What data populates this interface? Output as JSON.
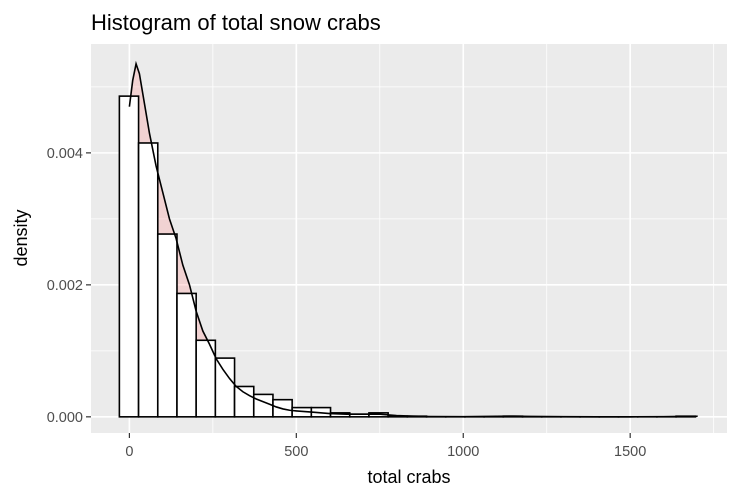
{
  "chart_data": {
    "type": "histogram",
    "title": "Histogram of total snow crabs",
    "xlabel": "total crabs",
    "ylabel": "density",
    "xlim": [
      -115,
      1790
    ],
    "ylim": [
      -0.000245,
      0.00565
    ],
    "x_ticks": [
      0,
      500,
      1000,
      1500
    ],
    "x_tick_labels": [
      "0",
      "500",
      "1000",
      "1500"
    ],
    "y_ticks": [
      0.0,
      0.002,
      0.004
    ],
    "y_tick_labels": [
      "0.000",
      "0.002",
      "0.004"
    ],
    "grid": true,
    "bin_width": 57.5,
    "bins": [
      {
        "x0": -30,
        "x1": 27.5,
        "density": 0.00486
      },
      {
        "x0": 27.5,
        "x1": 85,
        "density": 0.00415
      },
      {
        "x0": 85,
        "x1": 142.5,
        "density": 0.00277
      },
      {
        "x0": 142.5,
        "x1": 200,
        "density": 0.00187
      },
      {
        "x0": 200,
        "x1": 257.5,
        "density": 0.00116
      },
      {
        "x0": 257.5,
        "x1": 315,
        "density": 0.00089
      },
      {
        "x0": 315,
        "x1": 372.5,
        "density": 0.00046
      },
      {
        "x0": 372.5,
        "x1": 430,
        "density": 0.00034
      },
      {
        "x0": 430,
        "x1": 487.5,
        "density": 0.00026
      },
      {
        "x0": 487.5,
        "x1": 545,
        "density": 0.00014
      },
      {
        "x0": 545,
        "x1": 602.5,
        "density": 0.00014
      },
      {
        "x0": 602.5,
        "x1": 660,
        "density": 6e-05
      },
      {
        "x0": 660,
        "x1": 717.5,
        "density": 4e-05
      },
      {
        "x0": 717.5,
        "x1": 775,
        "density": 6e-05
      },
      {
        "x0": 775,
        "x1": 832.5,
        "density": 1e-05
      },
      {
        "x0": 832.5,
        "x1": 890,
        "density": 1e-05
      },
      {
        "x0": 890,
        "x1": 947.5,
        "density": 0.0
      },
      {
        "x0": 947.5,
        "x1": 1005,
        "density": 0.0
      },
      {
        "x0": 1005,
        "x1": 1062.5,
        "density": 0.0
      },
      {
        "x0": 1062.5,
        "x1": 1120,
        "density": 0.0
      },
      {
        "x0": 1120,
        "x1": 1177.5,
        "density": 1e-05
      },
      {
        "x0": 1177.5,
        "x1": 1235,
        "density": 0.0
      },
      {
        "x0": 1235,
        "x1": 1292.5,
        "density": 0.0
      },
      {
        "x0": 1292.5,
        "x1": 1350,
        "density": 0.0
      },
      {
        "x0": 1350,
        "x1": 1407.5,
        "density": 0.0
      },
      {
        "x0": 1407.5,
        "x1": 1465,
        "density": 0.0
      },
      {
        "x0": 1465,
        "x1": 1522.5,
        "density": 0.0
      },
      {
        "x0": 1522.5,
        "x1": 1580,
        "density": 0.0
      },
      {
        "x0": 1580,
        "x1": 1637.5,
        "density": 0.0
      },
      {
        "x0": 1637.5,
        "x1": 1695,
        "density": 1e-05
      }
    ],
    "density_curve": {
      "x": [
        0,
        10,
        20,
        30,
        40,
        50,
        60,
        80,
        100,
        120,
        140,
        160,
        180,
        200,
        220,
        240,
        260,
        280,
        300,
        320,
        340,
        360,
        380,
        400,
        420,
        440,
        460,
        480,
        500,
        550,
        600,
        650,
        700,
        750,
        800,
        850,
        900,
        1000,
        1100,
        1150,
        1200,
        1300,
        1400,
        1500,
        1600,
        1650,
        1700
      ],
      "y": [
        0.0047,
        0.0051,
        0.00535,
        0.0052,
        0.0049,
        0.0046,
        0.0043,
        0.0038,
        0.0034,
        0.003,
        0.0027,
        0.0023,
        0.002,
        0.0016,
        0.0013,
        0.0011,
        0.00088,
        0.00072,
        0.00058,
        0.00046,
        0.00038,
        0.00032,
        0.00027,
        0.00023,
        0.00019,
        0.00015,
        0.00012,
        0.0001,
        9e-05,
        7e-05,
        5e-05,
        4e-05,
        4e-05,
        4e-05,
        2e-05,
        1e-05,
        5e-06,
        3e-06,
        8e-06,
        1e-05,
        6e-06,
        2e-06,
        1e-06,
        1e-06,
        2e-06,
        6e-06,
        8e-06
      ]
    },
    "colors": {
      "panel_bg": "#ebebeb",
      "grid_major": "#ffffff",
      "bar_fill": "#ffffff",
      "bar_stroke": "#000000",
      "density_fill": "#ff9999",
      "density_alpha": 0.3,
      "curve": "#000000",
      "tick_text": "#4d4d4d"
    }
  }
}
